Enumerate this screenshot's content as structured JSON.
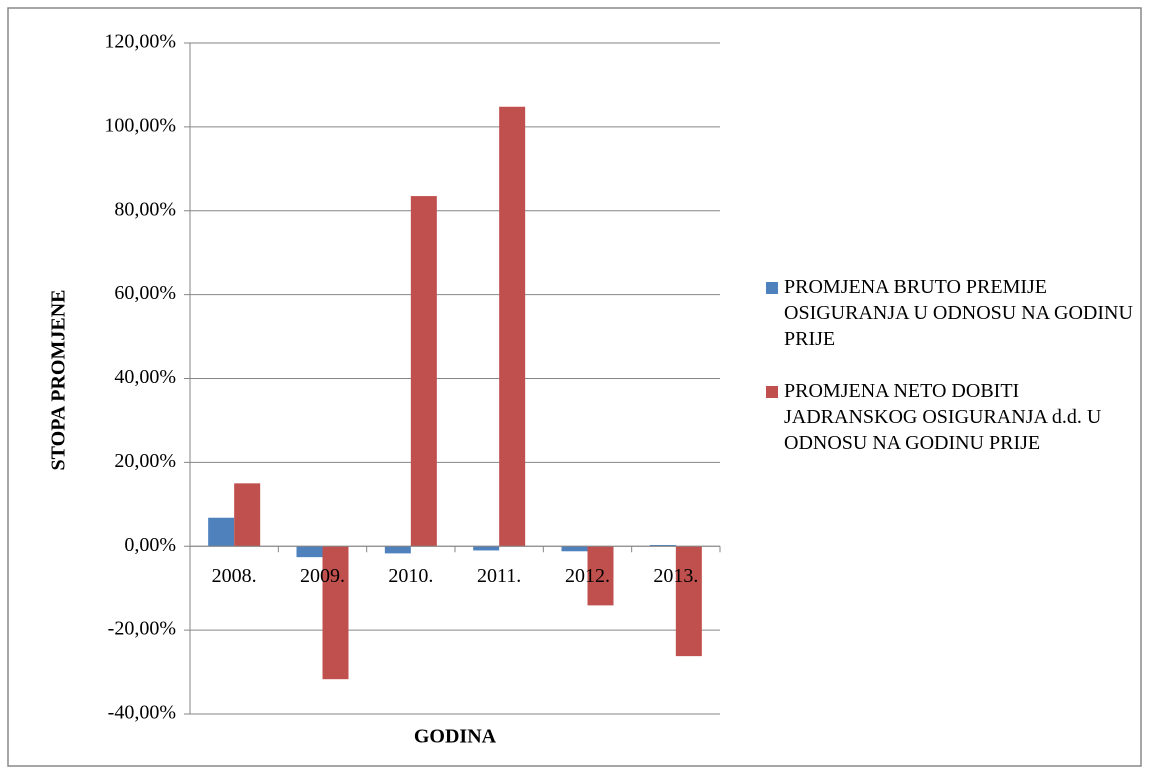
{
  "chart_data": {
    "type": "bar",
    "categories": [
      "2008.",
      "2009.",
      "2010.",
      "2011.",
      "2012.",
      "2013."
    ],
    "series": [
      {
        "name": "PROMJENA BRUTO PREMIJE OSIGURANJA U ODNOSU NA GODINU PRIJE",
        "color": "#4f81bd",
        "values": [
          6.8,
          -2.6,
          -1.7,
          -1.0,
          -1.2,
          0.3
        ]
      },
      {
        "name": "PROMJENA NETO DOBITI JADRANSKOG OSIGURANJA d.d. U ODNOSU NA GODINU PRIJE",
        "color": "#c0504d",
        "values": [
          15.0,
          -31.7,
          83.5,
          104.8,
          -14.1,
          -26.2
        ]
      }
    ],
    "ylabel": "STOPA PROMJENE",
    "xlabel": "GODINA",
    "ylim": [
      -40,
      120
    ],
    "yticks": [
      {
        "value": -40,
        "label": "-40,00%"
      },
      {
        "value": -20,
        "label": "-20,00%"
      },
      {
        "value": 0,
        "label": "0,00%"
      },
      {
        "value": 20,
        "label": "20,00%"
      },
      {
        "value": 40,
        "label": "40,00%"
      },
      {
        "value": 60,
        "label": "60,00%"
      },
      {
        "value": 80,
        "label": "80,00%"
      },
      {
        "value": 100,
        "label": "100,00%"
      },
      {
        "value": 120,
        "label": "120,00%"
      }
    ],
    "grid": true,
    "legend": "right"
  }
}
